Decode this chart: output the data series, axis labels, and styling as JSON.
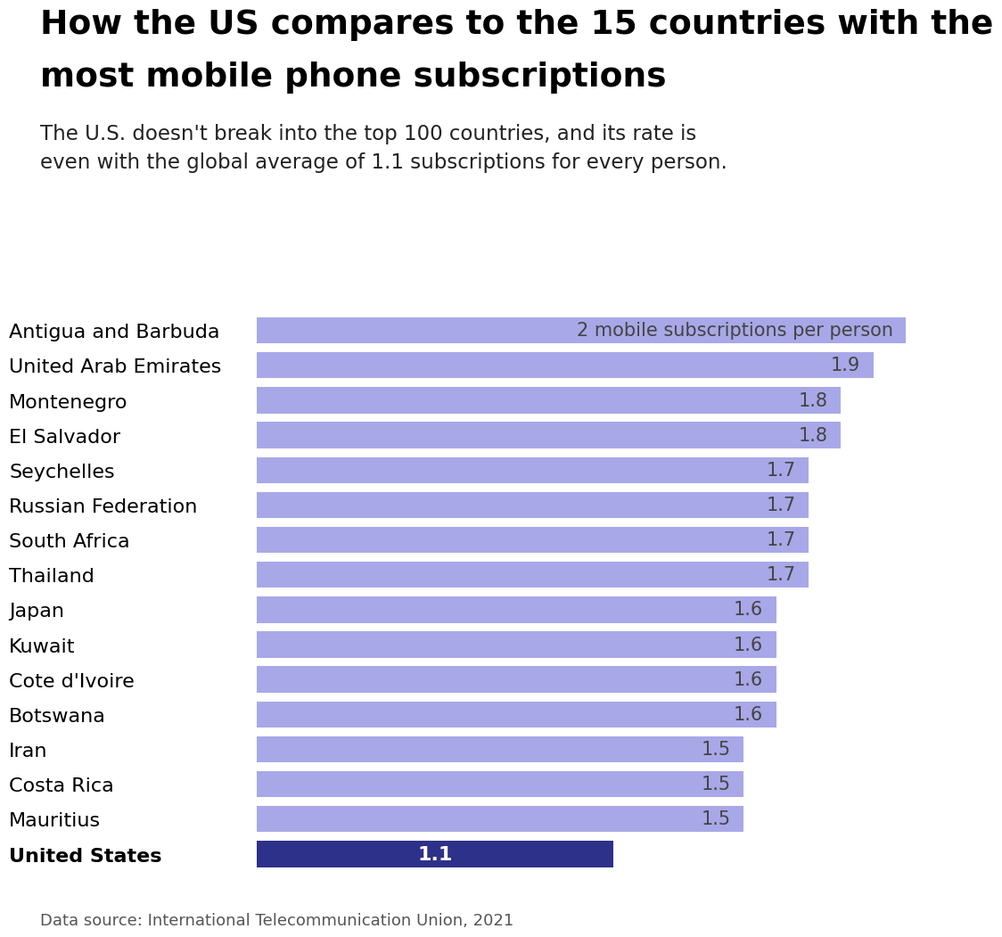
{
  "title_line1": "How the US compares to the 15 countries with the",
  "title_line2": "most mobile phone subscriptions",
  "subtitle": "The U.S. doesn't break into the top 100 countries, and its rate is\neven with the global average of 1.1 subscriptions for every person.",
  "footnote": "Data source: International Telecommunication Union, 2021",
  "categories": [
    "Antigua and Barbuda",
    "United Arab Emirates",
    "Montenegro",
    "El Salvador",
    "Seychelles",
    "Russian Federation",
    "South Africa",
    "Thailand",
    "Japan",
    "Kuwait",
    "Cote d'Ivoire",
    "Botswana",
    "Iran",
    "Costa Rica",
    "Mauritius",
    "United States"
  ],
  "values": [
    2.0,
    1.9,
    1.8,
    1.8,
    1.7,
    1.7,
    1.7,
    1.7,
    1.6,
    1.6,
    1.6,
    1.6,
    1.5,
    1.5,
    1.5,
    1.1
  ],
  "labels": [
    "2 mobile subscriptions per person",
    "1.9",
    "1.8",
    "1.8",
    "1.7",
    "1.7",
    "1.7",
    "1.7",
    "1.6",
    "1.6",
    "1.6",
    "1.6",
    "1.5",
    "1.5",
    "1.5",
    "1.1"
  ],
  "bar_colors": [
    "#a8a8e8",
    "#a8a8e8",
    "#a8a8e8",
    "#a8a8e8",
    "#a8a8e8",
    "#a8a8e8",
    "#a8a8e8",
    "#a8a8e8",
    "#a8a8e8",
    "#a8a8e8",
    "#a8a8e8",
    "#a8a8e8",
    "#a8a8e8",
    "#a8a8e8",
    "#a8a8e8",
    "#2e318a"
  ],
  "xlim": [
    0,
    2.12
  ],
  "background_color": "#ffffff",
  "title_fontsize": 27,
  "subtitle_fontsize": 16.5,
  "label_fontsize": 15,
  "ytick_fontsize": 16,
  "footnote_fontsize": 13
}
